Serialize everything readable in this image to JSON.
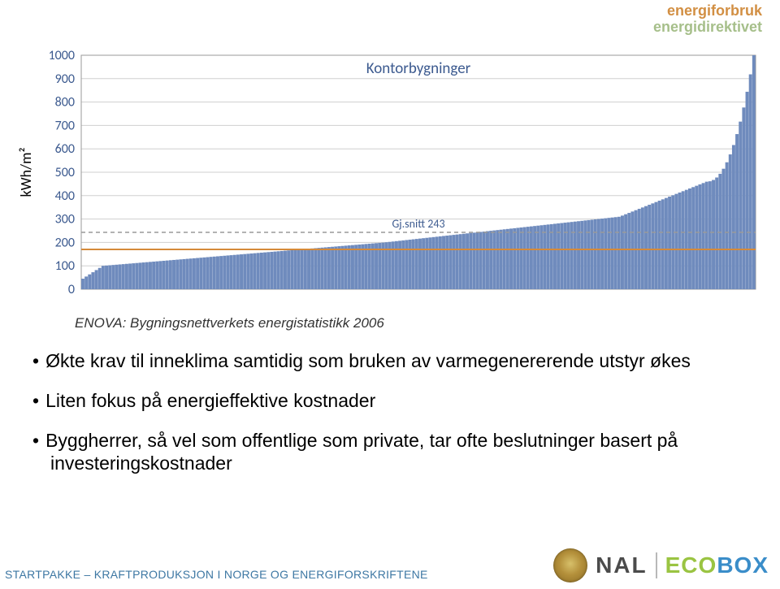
{
  "header": {
    "line1": "energiforbruk",
    "line2": "energidirektivet"
  },
  "chart": {
    "type": "bar",
    "title": "Kontorbygninger",
    "title_color": "#3c5a8f",
    "title_fontsize": 19,
    "ylabel": "kWh/m²",
    "ylabel_color": "#000000",
    "ylabel_fontsize": 18,
    "ylim": [
      0,
      1000
    ],
    "ytick_step": 100,
    "yticks": [
      0,
      100,
      200,
      300,
      400,
      500,
      600,
      700,
      800,
      900,
      1000
    ],
    "tick_fontsize": 16,
    "tick_color": "#3c5a8f",
    "grid_color": "#cfcfcf",
    "axis_color": "#9a9a9a",
    "background_color": "#ffffff",
    "bar_color": "#6f8bbd",
    "bar_border_color": "#6f8bbd",
    "bar_count": 200,
    "values_generator": "sorted_energy_profile",
    "avg_value": 243,
    "avg_label": "Gj.snitt 243",
    "avg_label_color": "#3c5a8f",
    "avg_label_fontsize": 14,
    "avg_line_color": "#9a9a9a",
    "avg_line_dash": "5,4",
    "reference_line_value": 170,
    "reference_line_color": "#d58a3a",
    "caption": "ENOVA: Bygningsnettverkets energistatistikk 2006"
  },
  "bullets": [
    "Økte krav til inneklima samtidig som bruken av varmegenererende utstyr økes",
    "Liten fokus på energieffektive kostnader",
    "Byggherrer, så vel som offentlige som private, tar ofte beslutninger basert på investeringskostnader"
  ],
  "footer": {
    "left": "STARTPAKKE – KRAFTPRODUKSJON I NORGE OG ENERGIFORSKRIFTENE",
    "logo_nal": "NAL",
    "logo_ecobox_eco": "ECO",
    "logo_ecobox_box": "BOX"
  }
}
